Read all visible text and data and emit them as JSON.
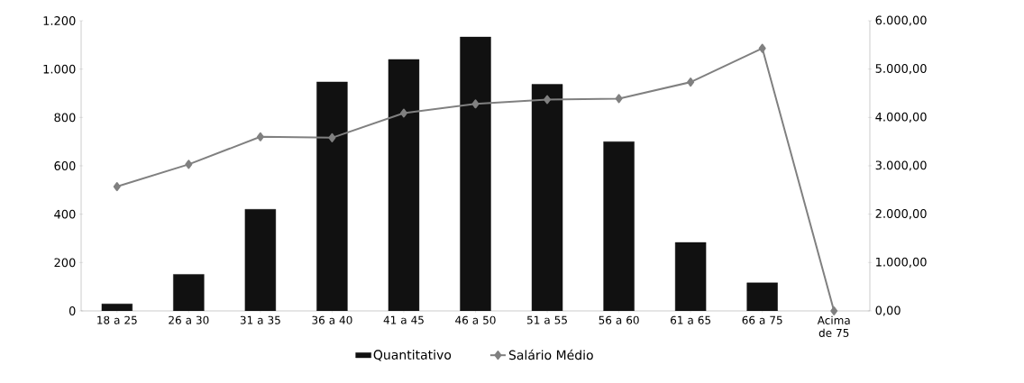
{
  "chart_data": {
    "type": "bar",
    "categories": [
      "18 a 25",
      "26 a 30",
      "31 a 35",
      "36 a 40",
      "41 a 45",
      "46 a 50",
      "51 a 55",
      "56 a 60",
      "61 a 65",
      "66 a 75",
      "Acima de 75"
    ],
    "series": [
      {
        "name": "Quantitativo",
        "color": "#111111",
        "values": [
          29,
          151,
          420,
          947,
          1040,
          1133,
          937,
          700,
          283,
          116,
          null
        ]
      },
      {
        "name": "Salário Médio",
        "type": "line",
        "axis": "y2",
        "color": "#808080",
        "values": [
          2570,
          3030,
          3600,
          3580,
          4090,
          4280,
          4370,
          4390,
          4730,
          5430,
          0
        ]
      }
    ],
    "ylim": [
      0,
      1200
    ],
    "yticks": [
      0,
      200,
      400,
      600,
      800,
      {
        "value": 1000,
        "label": "1.000"
      },
      {
        "value": 1200,
        "label": "1.200"
      }
    ],
    "y2lim": [
      0,
      6000
    ],
    "y2ticks": [
      {
        "value": 0,
        "label": "0,00"
      },
      {
        "value": 1000,
        "label": "1.000,00"
      },
      {
        "value": 2000,
        "label": "2.000,00"
      },
      {
        "value": 3000,
        "label": "3.000,00"
      },
      {
        "value": 4000,
        "label": "4.000,00"
      },
      {
        "value": 5000,
        "label": "5.000,00"
      },
      {
        "value": 6000,
        "label": "6.000,00"
      }
    ],
    "legend": "bottom",
    "marker": "diamond",
    "line_style": "solid"
  }
}
